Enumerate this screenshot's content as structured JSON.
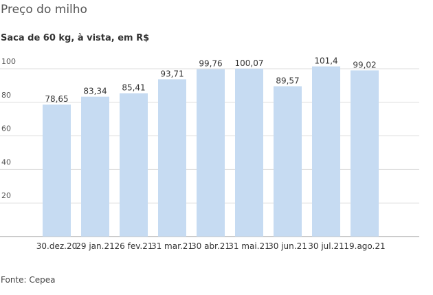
{
  "header": {
    "title": "Preço do milho",
    "subtitle": "Saca de 60 kg, à vista, em R$"
  },
  "footer": {
    "source": "Fonte: Cepea"
  },
  "chart_data": {
    "type": "bar",
    "title": "Preço do milho",
    "subtitle": "Saca de 60 kg, à vista, em R$",
    "categories": [
      "30.dez.20",
      "29 jan.21",
      "26 fev.21",
      "31 mar.21",
      "30 abr.21",
      "31 mai.21",
      "30 jun.21",
      "30 jul.21",
      "19.ago.21"
    ],
    "values": [
      78.65,
      83.34,
      85.41,
      93.71,
      99.76,
      100.07,
      89.57,
      101.4,
      99.02
    ],
    "value_labels": [
      "78,65",
      "83,34",
      "85,41",
      "93,71",
      "99,76",
      "100,07",
      "89,57",
      "101,4",
      "99,02"
    ],
    "yticks": [
      20,
      40,
      60,
      80,
      100
    ],
    "ylim": [
      0,
      100
    ],
    "grid": true,
    "bar_color": "#c6dbf2",
    "grid_color": "#dddddd",
    "axis_color": "#999999"
  }
}
